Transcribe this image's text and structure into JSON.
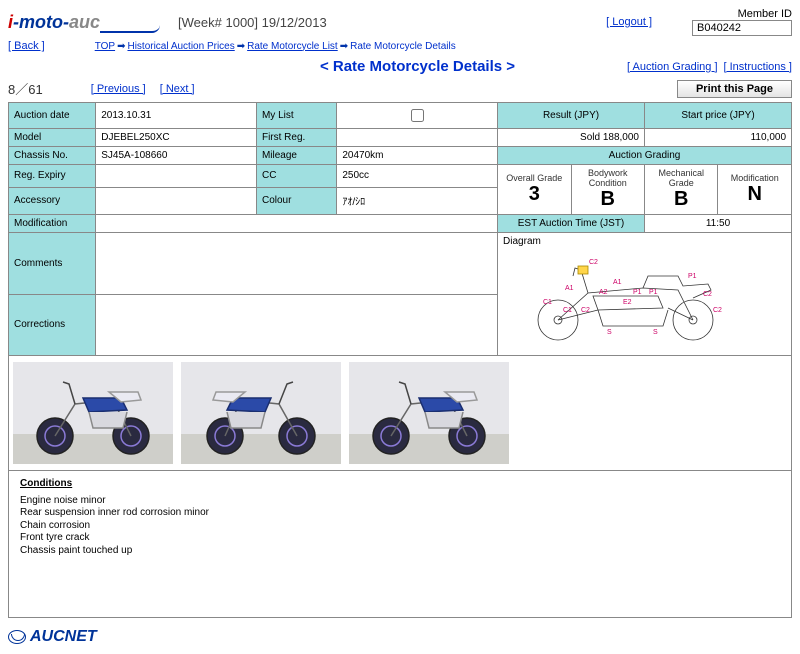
{
  "header": {
    "logo_text": "i-moto-auc",
    "week": "[Week# 1000] 19/12/2013",
    "logout": "[ Logout ]",
    "member_label": "Member ID",
    "member_id": "B040242",
    "back": "[ Back ]"
  },
  "breadcrumb": {
    "top": "TOP",
    "hist": "Historical Auction Prices",
    "list": "Rate Motorcycle List",
    "detail": "Rate Motorcycle Details"
  },
  "title": "< Rate Motorcycle Details >",
  "links": {
    "grading": "[ Auction Grading ]",
    "instructions": "[ Instructions ]",
    "previous": "[ Previous ]",
    "next": "[ Next ]",
    "print": "Print this Page"
  },
  "counter": "8／61",
  "labels": {
    "auction_date": "Auction date",
    "model": "Model",
    "chassis": "Chassis No.",
    "reg_expiry": "Reg. Expiry",
    "accessory": "Accessory",
    "modification": "Modification",
    "comments": "Comments",
    "corrections": "Corrections",
    "mylist": "My List",
    "first_reg": "First Reg.",
    "mileage": "Mileage",
    "cc": "CC",
    "colour": "Colour",
    "result": "Result (JPY)",
    "start_price": "Start price (JPY)",
    "auction_grading": "Auction Grading",
    "overall": "Overall Grade",
    "bodywork": "Bodywork Condition",
    "mechanical": "Mechanical Grade",
    "mod": "Modification",
    "est_time": "EST Auction Time (JST)",
    "diagram": "Diagram",
    "conditions": "Conditions"
  },
  "values": {
    "auction_date": "2013.10.31",
    "model": "DJEBEL250XC",
    "chassis": "SJ45A-108660",
    "reg_expiry": "",
    "accessory": "",
    "mileage": "20470km",
    "cc": "250cc",
    "colour": "ｱｵ/ｼﾛ",
    "result": "Sold 188,000",
    "start_price": "110,000",
    "overall": "3",
    "bodywork": "B",
    "mechanical": "B",
    "mod": "N",
    "est_time": "11:50"
  },
  "conditions": [
    "Engine noise minor",
    "Rear suspension inner rod corrosion minor",
    "Chain corrosion",
    "Front tyre crack",
    "Chassis paint touched up"
  ],
  "diagram_labels": [
    "C2",
    "A1",
    "P1",
    "A1",
    "A2",
    "P1",
    "P1",
    "C2",
    "C1",
    "C1",
    "C2",
    "E2",
    "C2",
    "S",
    "S"
  ],
  "footer": {
    "brand": "AUCNET"
  },
  "colors": {
    "header_bg": "#9fdfe0",
    "link": "#0030cc",
    "border": "#888888",
    "diagram_label": "#cc0066"
  }
}
